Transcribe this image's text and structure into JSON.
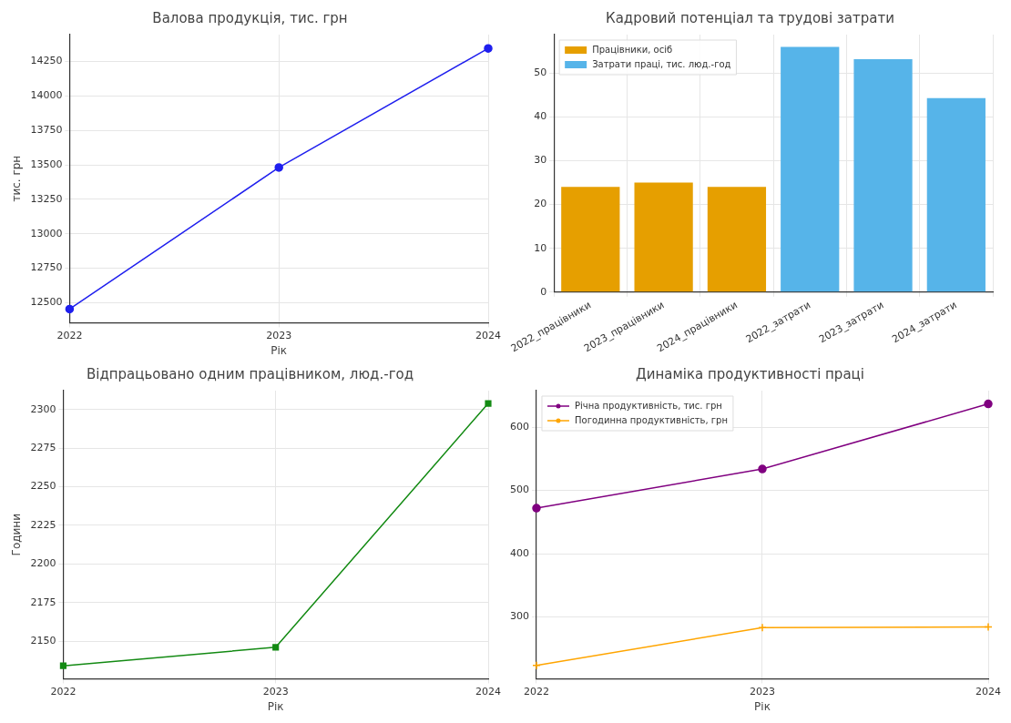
{
  "chart_data": [
    {
      "type": "line",
      "title": "Валова продукція, тис. грн",
      "xlabel": "Рік",
      "ylabel": "тис. грн",
      "categories": [
        "2022",
        "2023",
        "2024"
      ],
      "series": [
        {
          "color": "#1f1fee",
          "values": [
            12454,
            13481,
            14345
          ]
        }
      ],
      "ylim": [
        12355,
        14445
      ],
      "yticks": [
        12500,
        12750,
        13000,
        13250,
        13500,
        13750,
        14000,
        14250
      ],
      "grid": true,
      "marker": "circle",
      "line_style": "solid"
    },
    {
      "type": "bar",
      "title": "Кадровий потенціал та трудові затрати",
      "categories": [
        "2022_працівники",
        "2023_працівники",
        "2024_працівники",
        "2022_затрати",
        "2023_затрати",
        "2024_затрати"
      ],
      "series": [
        {
          "name": "Працівники, осіб",
          "color": "#e69f00",
          "values": [
            24,
            25,
            24,
            null,
            null,
            null
          ]
        },
        {
          "name": "Затрати праці, тис. люд.-год",
          "color": "#56b4e9",
          "values": [
            null,
            null,
            null,
            56,
            53.2,
            44.3
          ]
        }
      ],
      "ylim": [
        0,
        58.8
      ],
      "yticks": [
        0,
        10,
        20,
        30,
        40,
        50
      ],
      "grid": true,
      "legend": "top left"
    },
    {
      "type": "line",
      "title": "Відпрацьовано одним працівником, люд.-год",
      "xlabel": "Рік",
      "ylabel": "Години",
      "categories": [
        "2022",
        "2023",
        "2024"
      ],
      "series": [
        {
          "color": "#138a13",
          "values": [
            2134,
            2146,
            2304
          ]
        }
      ],
      "ylim": [
        2125.6,
        2312.3
      ],
      "yticks": [
        2150,
        2175,
        2200,
        2225,
        2250,
        2275,
        2300
      ],
      "grid": true,
      "marker": "square",
      "line_style": "solid"
    },
    {
      "type": "line",
      "title": "Динаміка продуктивності праці",
      "xlabel": "Рік",
      "categories": [
        "2022",
        "2023",
        "2024"
      ],
      "series": [
        {
          "name": "Річна продуктивність, тис. грн",
          "color": "#800080",
          "marker": "circle",
          "values": [
            472,
            534,
            637
          ]
        },
        {
          "name": "Погодинна продуктивність, грн",
          "color": "#ffa500",
          "marker": "cross",
          "values": [
            223,
            283,
            284
          ]
        }
      ],
      "ylim": [
        202,
        658
      ],
      "yticks": [
        300,
        400,
        500,
        600
      ],
      "grid": true,
      "legend": "top left",
      "line_style": "solid"
    }
  ]
}
